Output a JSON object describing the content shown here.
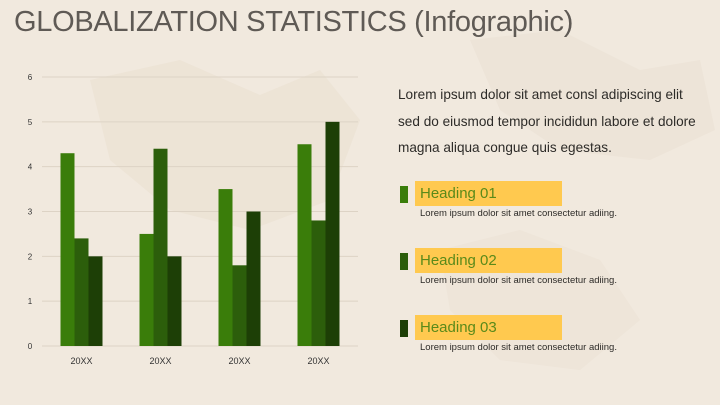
{
  "title": "GLOBALIZATION STATISTICS (Infographic)",
  "intro": "Lorem ipsum dolor sit amet consl adipiscing elit sed do eiusmod tempor incididun labore et dolore magna aliqua congue quis egestas.",
  "colors": {
    "series1": "#3a7d0a",
    "series2": "#2c5e0b",
    "series3": "#1d3f06",
    "heading_bg": "#ffc94f",
    "heading_text": "#5a8a1a"
  },
  "legend_items": [
    {
      "heading": "Heading 01",
      "description": "Lorem ipsum dolor sit amet consectetur adiing.",
      "color": "#3a7d0a"
    },
    {
      "heading": "Heading 02",
      "description": "Lorem ipsum dolor sit amet consectetur adiing.",
      "color": "#2c5e0b"
    },
    {
      "heading": "Heading 03",
      "description": "Lorem ipsum dolor sit amet consectetur adiing.",
      "color": "#1d3f06"
    }
  ],
  "chart_data": {
    "type": "bar",
    "categories": [
      "20XX",
      "20XX",
      "20XX",
      "20XX"
    ],
    "series": [
      {
        "values": [
          4.3,
          2.5,
          3.5,
          4.5
        ],
        "color": "#3a7d0a"
      },
      {
        "values": [
          2.4,
          4.4,
          1.8,
          2.8
        ],
        "color": "#2c5e0b"
      },
      {
        "values": [
          2.0,
          2.0,
          3.0,
          5.0
        ],
        "color": "#1d3f06"
      }
    ],
    "yticks": [
      "0",
      "1",
      "2",
      "3",
      "4",
      "5",
      "6"
    ],
    "ylim": [
      0,
      6
    ],
    "grid": true,
    "title": "",
    "xlabel": "",
    "ylabel": ""
  }
}
